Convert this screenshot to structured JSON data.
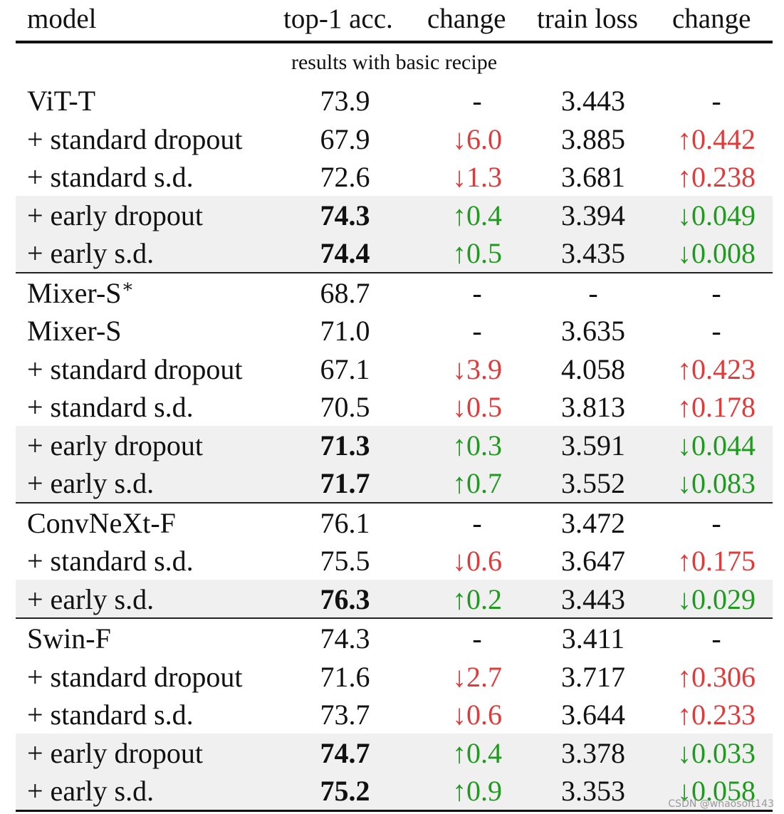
{
  "headers": {
    "model": "model",
    "acc": "top-1 acc.",
    "change1": "change",
    "loss": "train loss",
    "change2": "change"
  },
  "subtitle": "results with basic recipe",
  "rows": [
    {
      "model": "ViT-T",
      "sup": "",
      "acc": "73.9",
      "acc_bold": false,
      "chg1": "-",
      "chg1_type": "none",
      "loss": "3.443",
      "chg2": "-",
      "chg2_type": "none",
      "shaded": false,
      "section_start": false
    },
    {
      "model": "+ standard dropout",
      "sup": "",
      "acc": "67.9",
      "acc_bold": false,
      "chg1": "↓6.0",
      "chg1_type": "bad",
      "loss": "3.885",
      "chg2": "↑0.442",
      "chg2_type": "bad",
      "shaded": false,
      "section_start": false
    },
    {
      "model": "+ standard s.d.",
      "sup": "",
      "acc": "72.6",
      "acc_bold": false,
      "chg1": "↓1.3",
      "chg1_type": "bad",
      "loss": "3.681",
      "chg2": "↑0.238",
      "chg2_type": "bad",
      "shaded": false,
      "section_start": false
    },
    {
      "model": "+ early dropout",
      "sup": "",
      "acc": "74.3",
      "acc_bold": true,
      "chg1": "↑0.4",
      "chg1_type": "good",
      "loss": "3.394",
      "chg2": "↓0.049",
      "chg2_type": "good",
      "shaded": true,
      "section_start": false
    },
    {
      "model": "+ early s.d.",
      "sup": "",
      "acc": "74.4",
      "acc_bold": true,
      "chg1": "↑0.5",
      "chg1_type": "good",
      "loss": "3.435",
      "chg2": "↓0.008",
      "chg2_type": "good",
      "shaded": true,
      "section_start": false
    },
    {
      "model": "Mixer-S",
      "sup": "∗",
      "acc": "68.7",
      "acc_bold": false,
      "chg1": "-",
      "chg1_type": "none",
      "loss": "-",
      "chg2": "-",
      "chg2_type": "none",
      "shaded": false,
      "section_start": true
    },
    {
      "model": "Mixer-S",
      "sup": "",
      "acc": "71.0",
      "acc_bold": false,
      "chg1": "-",
      "chg1_type": "none",
      "loss": "3.635",
      "chg2": "-",
      "chg2_type": "none",
      "shaded": false,
      "section_start": false
    },
    {
      "model": "+ standard dropout",
      "sup": "",
      "acc": "67.1",
      "acc_bold": false,
      "chg1": "↓3.9",
      "chg1_type": "bad",
      "loss": "4.058",
      "chg2": "↑0.423",
      "chg2_type": "bad",
      "shaded": false,
      "section_start": false
    },
    {
      "model": "+ standard s.d.",
      "sup": "",
      "acc": "70.5",
      "acc_bold": false,
      "chg1": "↓0.5",
      "chg1_type": "bad",
      "loss": "3.813",
      "chg2": "↑0.178",
      "chg2_type": "bad",
      "shaded": false,
      "section_start": false
    },
    {
      "model": "+ early dropout",
      "sup": "",
      "acc": "71.3",
      "acc_bold": true,
      "chg1": "↑0.3",
      "chg1_type": "good",
      "loss": "3.591",
      "chg2": "↓0.044",
      "chg2_type": "good",
      "shaded": true,
      "section_start": false
    },
    {
      "model": "+ early s.d.",
      "sup": "",
      "acc": "71.7",
      "acc_bold": true,
      "chg1": "↑0.7",
      "chg1_type": "good",
      "loss": "3.552",
      "chg2": "↓0.083",
      "chg2_type": "good",
      "shaded": true,
      "section_start": false
    },
    {
      "model": "ConvNeXt-F",
      "sup": "",
      "acc": "76.1",
      "acc_bold": false,
      "chg1": "-",
      "chg1_type": "none",
      "loss": "3.472",
      "chg2": "-",
      "chg2_type": "none",
      "shaded": false,
      "section_start": true
    },
    {
      "model": "+ standard s.d.",
      "sup": "",
      "acc": "75.5",
      "acc_bold": false,
      "chg1": "↓0.6",
      "chg1_type": "bad",
      "loss": "3.647",
      "chg2": "↑0.175",
      "chg2_type": "bad",
      "shaded": false,
      "section_start": false
    },
    {
      "model": "+ early s.d.",
      "sup": "",
      "acc": "76.3",
      "acc_bold": true,
      "chg1": "↑0.2",
      "chg1_type": "good",
      "loss": "3.443",
      "chg2": "↓0.029",
      "chg2_type": "good",
      "shaded": true,
      "section_start": false
    },
    {
      "model": "Swin-F",
      "sup": "",
      "acc": "74.3",
      "acc_bold": false,
      "chg1": "-",
      "chg1_type": "none",
      "loss": "3.411",
      "chg2": "-",
      "chg2_type": "none",
      "shaded": false,
      "section_start": true
    },
    {
      "model": "+ standard dropout",
      "sup": "",
      "acc": "71.6",
      "acc_bold": false,
      "chg1": "↓2.7",
      "chg1_type": "bad",
      "loss": "3.717",
      "chg2": "↑0.306",
      "chg2_type": "bad",
      "shaded": false,
      "section_start": false
    },
    {
      "model": "+ standard s.d.",
      "sup": "",
      "acc": "73.7",
      "acc_bold": false,
      "chg1": "↓0.6",
      "chg1_type": "bad",
      "loss": "3.644",
      "chg2": "↑0.233",
      "chg2_type": "bad",
      "shaded": false,
      "section_start": false
    },
    {
      "model": "+ early dropout",
      "sup": "",
      "acc": "74.7",
      "acc_bold": true,
      "chg1": "↑0.4",
      "chg1_type": "good",
      "loss": "3.378",
      "chg2": "↓0.033",
      "chg2_type": "good",
      "shaded": true,
      "section_start": false
    },
    {
      "model": "+ early s.d.",
      "sup": "",
      "acc": "75.2",
      "acc_bold": true,
      "chg1": "↑0.9",
      "chg1_type": "good",
      "loss": "3.353",
      "chg2": "↓0.058",
      "chg2_type": "good",
      "shaded": true,
      "section_start": false
    }
  ],
  "colors": {
    "good": "#1f9a1f",
    "bad": "#e03a3a",
    "shade": "#f0f0f0"
  },
  "watermark": "CSDN @whaosoft143"
}
